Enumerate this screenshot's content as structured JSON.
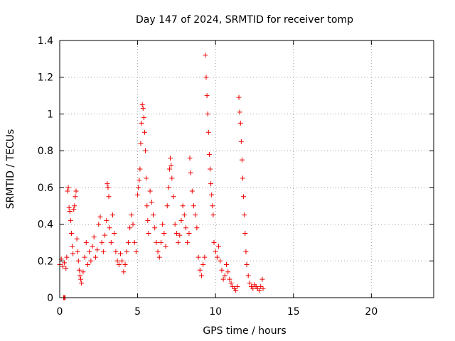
{
  "chart_data": {
    "type": "scatter",
    "title": "Day 147 of 2024, SRMTID for receiver tomp",
    "xlabel": "GPS time / hours",
    "ylabel": "SRMTID / TECUs",
    "xlim": [
      0,
      24
    ],
    "ylim": [
      0,
      1.4
    ],
    "x_ticks": [
      0,
      5,
      10,
      15,
      20
    ],
    "y_ticks": [
      0,
      0.2,
      0.4,
      0.6,
      0.8,
      1,
      1.2,
      1.4
    ],
    "x_tick_labels": [
      "0",
      "5",
      "10",
      "15",
      "20"
    ],
    "y_tick_labels": [
      "0",
      "0.2",
      "0.4",
      "0.6",
      "0.8",
      "1",
      "1.2",
      "1.4"
    ],
    "grid": true,
    "marker": "+",
    "series": [
      {
        "name": "SRMTID",
        "color": "#ee0000",
        "points": [
          [
            0.0,
            0.18
          ],
          [
            0.1,
            0.21
          ],
          [
            0.2,
            0.17
          ],
          [
            0.3,
            0.19
          ],
          [
            0.4,
            0.16
          ],
          [
            0.45,
            0.22
          ],
          [
            0.5,
            0.58
          ],
          [
            0.55,
            0.6
          ],
          [
            0.6,
            0.49
          ],
          [
            0.65,
            0.47
          ],
          [
            0.7,
            0.42
          ],
          [
            0.75,
            0.35
          ],
          [
            0.8,
            0.28
          ],
          [
            0.85,
            0.24
          ],
          [
            0.9,
            0.48
          ],
          [
            0.95,
            0.5
          ],
          [
            1.0,
            0.55
          ],
          [
            1.05,
            0.58
          ],
          [
            1.1,
            0.32
          ],
          [
            1.15,
            0.25
          ],
          [
            1.2,
            0.2
          ],
          [
            1.25,
            0.15
          ],
          [
            1.3,
            0.12
          ],
          [
            1.35,
            0.1
          ],
          [
            1.4,
            0.08
          ],
          [
            1.5,
            0.14
          ],
          [
            1.6,
            0.22
          ],
          [
            1.7,
            0.3
          ],
          [
            1.8,
            0.18
          ],
          [
            1.9,
            0.25
          ],
          [
            2.0,
            0.2
          ],
          [
            2.1,
            0.28
          ],
          [
            2.2,
            0.33
          ],
          [
            2.3,
            0.22
          ],
          [
            2.4,
            0.26
          ],
          [
            2.5,
            0.4
          ],
          [
            2.6,
            0.44
          ],
          [
            2.7,
            0.3
          ],
          [
            2.8,
            0.25
          ],
          [
            2.9,
            0.34
          ],
          [
            3.0,
            0.42
          ],
          [
            3.05,
            0.62
          ],
          [
            3.1,
            0.6
          ],
          [
            3.15,
            0.55
          ],
          [
            3.2,
            0.38
          ],
          [
            3.3,
            0.3
          ],
          [
            3.4,
            0.45
          ],
          [
            3.5,
            0.35
          ],
          [
            3.6,
            0.25
          ],
          [
            3.7,
            0.2
          ],
          [
            3.8,
            0.18
          ],
          [
            3.9,
            0.24
          ],
          [
            4.0,
            0.2
          ],
          [
            4.1,
            0.14
          ],
          [
            4.2,
            0.18
          ],
          [
            4.3,
            0.25
          ],
          [
            4.4,
            0.3
          ],
          [
            4.5,
            0.38
          ],
          [
            4.6,
            0.45
          ],
          [
            4.7,
            0.4
          ],
          [
            4.8,
            0.3
          ],
          [
            4.9,
            0.25
          ],
          [
            5.0,
            0.56
          ],
          [
            5.05,
            0.6
          ],
          [
            5.1,
            0.64
          ],
          [
            5.15,
            0.7
          ],
          [
            5.2,
            0.84
          ],
          [
            5.25,
            0.95
          ],
          [
            5.3,
            1.05
          ],
          [
            5.35,
            1.03
          ],
          [
            5.4,
            0.98
          ],
          [
            5.45,
            0.9
          ],
          [
            5.5,
            0.8
          ],
          [
            5.55,
            0.65
          ],
          [
            5.6,
            0.5
          ],
          [
            5.65,
            0.42
          ],
          [
            5.7,
            0.35
          ],
          [
            5.8,
            0.58
          ],
          [
            5.9,
            0.52
          ],
          [
            6.0,
            0.45
          ],
          [
            6.1,
            0.38
          ],
          [
            6.2,
            0.3
          ],
          [
            6.3,
            0.25
          ],
          [
            6.4,
            0.22
          ],
          [
            6.5,
            0.3
          ],
          [
            6.6,
            0.4
          ],
          [
            6.7,
            0.35
          ],
          [
            6.8,
            0.28
          ],
          [
            6.9,
            0.5
          ],
          [
            7.0,
            0.6
          ],
          [
            7.05,
            0.7
          ],
          [
            7.1,
            0.76
          ],
          [
            7.15,
            0.72
          ],
          [
            7.2,
            0.65
          ],
          [
            7.3,
            0.55
          ],
          [
            7.4,
            0.4
          ],
          [
            7.5,
            0.35
          ],
          [
            7.6,
            0.3
          ],
          [
            7.7,
            0.34
          ],
          [
            7.8,
            0.42
          ],
          [
            7.9,
            0.5
          ],
          [
            8.0,
            0.45
          ],
          [
            8.1,
            0.38
          ],
          [
            8.2,
            0.3
          ],
          [
            8.3,
            0.35
          ],
          [
            8.35,
            0.76
          ],
          [
            8.4,
            0.68
          ],
          [
            8.5,
            0.58
          ],
          [
            8.6,
            0.5
          ],
          [
            8.7,
            0.45
          ],
          [
            8.8,
            0.38
          ],
          [
            8.9,
            0.22
          ],
          [
            9.0,
            0.15
          ],
          [
            9.1,
            0.12
          ],
          [
            9.2,
            0.18
          ],
          [
            9.3,
            0.22
          ],
          [
            9.35,
            1.32
          ],
          [
            9.4,
            1.2
          ],
          [
            9.45,
            1.1
          ],
          [
            9.5,
            1.0
          ],
          [
            9.55,
            0.9
          ],
          [
            9.6,
            0.78
          ],
          [
            9.65,
            0.7
          ],
          [
            9.7,
            0.62
          ],
          [
            9.75,
            0.56
          ],
          [
            9.8,
            0.5
          ],
          [
            9.85,
            0.45
          ],
          [
            9.9,
            0.3
          ],
          [
            10.0,
            0.25
          ],
          [
            10.1,
            0.22
          ],
          [
            10.2,
            0.28
          ],
          [
            10.3,
            0.2
          ],
          [
            10.4,
            0.15
          ],
          [
            10.5,
            0.1
          ],
          [
            10.6,
            0.12
          ],
          [
            10.7,
            0.18
          ],
          [
            10.8,
            0.14
          ],
          [
            10.9,
            0.1
          ],
          [
            11.0,
            0.08
          ],
          [
            11.1,
            0.06
          ],
          [
            11.2,
            0.05
          ],
          [
            11.3,
            0.04
          ],
          [
            11.4,
            0.06
          ],
          [
            11.5,
            1.09
          ],
          [
            11.55,
            1.01
          ],
          [
            11.6,
            0.95
          ],
          [
            11.65,
            0.85
          ],
          [
            11.7,
            0.75
          ],
          [
            11.75,
            0.65
          ],
          [
            11.8,
            0.55
          ],
          [
            11.85,
            0.45
          ],
          [
            11.9,
            0.35
          ],
          [
            11.95,
            0.25
          ],
          [
            12.0,
            0.18
          ],
          [
            12.1,
            0.12
          ],
          [
            12.2,
            0.08
          ],
          [
            12.3,
            0.06
          ],
          [
            12.4,
            0.05
          ],
          [
            12.5,
            0.07
          ],
          [
            12.6,
            0.06
          ],
          [
            12.7,
            0.05
          ],
          [
            12.8,
            0.04
          ],
          [
            12.9,
            0.06
          ],
          [
            13.0,
            0.1
          ],
          [
            13.05,
            0.05
          ],
          [
            0.25,
            0.0
          ],
          [
            0.3,
            0.0
          ],
          [
            0.35,
            0.0
          ]
        ]
      }
    ]
  }
}
